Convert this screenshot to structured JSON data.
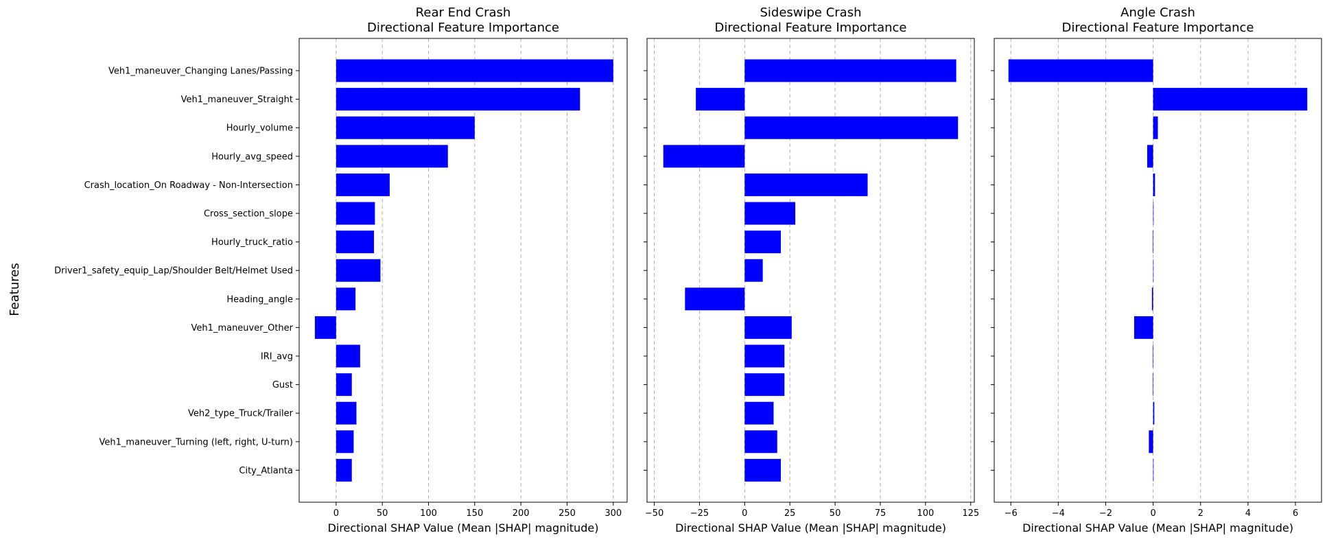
{
  "figure": {
    "ylabel": "Features"
  },
  "features": [
    "Veh1_maneuver_Changing Lanes/Passing",
    "Veh1_maneuver_Straight",
    "Hourly_volume",
    "Hourly_avg_speed",
    "Crash_location_On Roadway - Non-Intersection",
    "Cross_section_slope",
    "Hourly_truck_ratio",
    "Driver1_safety_equip_Lap/Shoulder Belt/Helmet Used",
    "Heading_angle",
    "Veh1_maneuver_Other",
    "IRI_avg",
    "Gust",
    "Veh2_type_Truck/Trailer",
    "Veh1_maneuver_Turning (left, right, U-turn)",
    "City_Atlanta"
  ],
  "colors": {
    "bar": "#0000ff",
    "grid": "#b0b0b0"
  },
  "chart_data": [
    {
      "type": "bar",
      "orientation": "horizontal",
      "title_line1": "Rear End Crash",
      "title_line2": "Directional Feature Importance",
      "xlabel": "Directional SHAP Value (Mean |SHAP| magnitude)",
      "xlim": [
        -40,
        315
      ],
      "xticks": [
        0,
        50,
        100,
        150,
        200,
        250,
        300
      ],
      "grid": "x-dashed",
      "values": [
        300,
        264,
        150,
        121,
        58,
        42,
        41,
        48,
        21,
        -23,
        26,
        17,
        22,
        19,
        17
      ]
    },
    {
      "type": "bar",
      "orientation": "horizontal",
      "title_line1": "Sideswipe Crash",
      "title_line2": "Directional Feature Importance",
      "xlabel": "Directional SHAP Value (Mean |SHAP| magnitude)",
      "xlim": [
        -54,
        127
      ],
      "xticks": [
        -50,
        -25,
        0,
        25,
        50,
        75,
        100,
        125
      ],
      "grid": "x-dashed",
      "values": [
        117,
        -27,
        118,
        -45,
        68,
        28,
        20,
        10,
        -33,
        26,
        22,
        22,
        16,
        18,
        20
      ]
    },
    {
      "type": "bar",
      "orientation": "horizontal",
      "title_line1": "Angle Crash",
      "title_line2": "Directional Feature Importance",
      "xlabel": "Directional SHAP Value (Mean |SHAP| magnitude)",
      "xlim": [
        -6.7,
        7.1
      ],
      "xticks": [
        -6,
        -4,
        -2,
        0,
        2,
        4,
        6
      ],
      "grid": "x-dashed",
      "values": [
        -6.1,
        6.5,
        0.2,
        -0.25,
        0.08,
        0.02,
        -0.02,
        0,
        -0.05,
        -0.8,
        -0.02,
        -0.02,
        0.05,
        -0.18,
        0.02
      ]
    }
  ]
}
